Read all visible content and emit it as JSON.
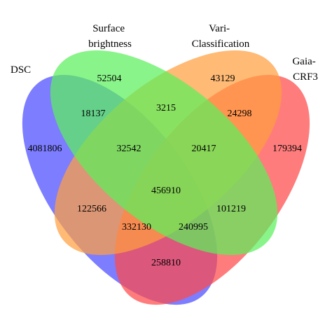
{
  "venn": {
    "sets": [
      {
        "key": "dsc",
        "lines": [
          "DSC"
        ],
        "color": "#4b4bff"
      },
      {
        "key": "surface",
        "lines": [
          "Surface",
          "brightness"
        ],
        "color": "#5cf05c"
      },
      {
        "key": "vari",
        "lines": [
          "Vari-",
          "Classification"
        ],
        "color": "#ffa040"
      },
      {
        "key": "gaia",
        "lines": [
          "Gaia-",
          "CRF3"
        ],
        "color": "#ff4a4a"
      }
    ],
    "regions": [
      {
        "sets": [
          "dsc"
        ],
        "count": "4081806"
      },
      {
        "sets": [
          "surface"
        ],
        "count": "52504"
      },
      {
        "sets": [
          "vari"
        ],
        "count": "43129"
      },
      {
        "sets": [
          "gaia"
        ],
        "count": "179394"
      },
      {
        "sets": [
          "dsc",
          "surface"
        ],
        "count": "18137"
      },
      {
        "sets": [
          "surface",
          "vari"
        ],
        "count": "3215"
      },
      {
        "sets": [
          "vari",
          "gaia"
        ],
        "count": "24298"
      },
      {
        "sets": [
          "dsc",
          "surface",
          "vari"
        ],
        "count": "32542"
      },
      {
        "sets": [
          "surface",
          "vari",
          "gaia"
        ],
        "count": "20417"
      },
      {
        "sets": [
          "dsc",
          "surface",
          "vari",
          "gaia"
        ],
        "count": "456910"
      },
      {
        "sets": [
          "dsc",
          "vari"
        ],
        "count": "122566"
      },
      {
        "sets": [
          "surface",
          "gaia"
        ],
        "count": "101219"
      },
      {
        "sets": [
          "dsc",
          "vari",
          "gaia"
        ],
        "count": "332130"
      },
      {
        "sets": [
          "dsc",
          "surface",
          "gaia"
        ],
        "count": "240995"
      },
      {
        "sets": [
          "dsc",
          "gaia"
        ],
        "count": "258810"
      }
    ]
  }
}
